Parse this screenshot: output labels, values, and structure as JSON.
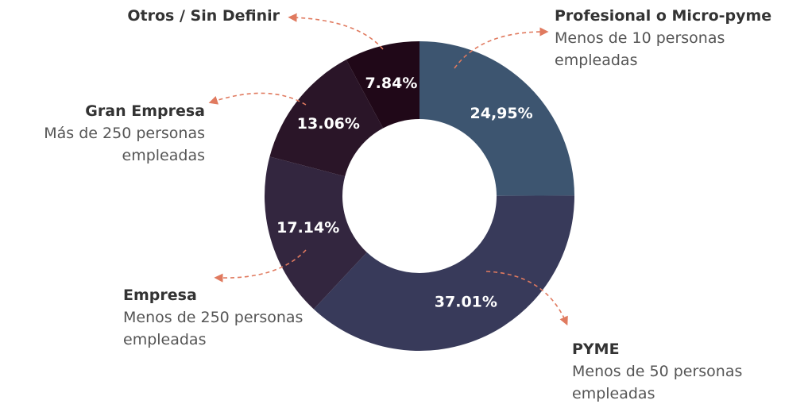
{
  "chart_data": {
    "type": "donut",
    "categories": [
      "Profesional o Micro-pyme",
      "PYME",
      "Empresa",
      "Gran Empresa",
      "Otros / Sin Definir"
    ],
    "descriptions": [
      "Menos de 10 personas empleadas",
      "Menos de 50 personas empleadas",
      "Menos de 250 personas empleadas",
      "Más de 250 personas empleadas",
      null
    ],
    "values": [
      24.95,
      37.01,
      17.14,
      13.06,
      7.84
    ],
    "value_labels": [
      "24,95%",
      "37.01%",
      "17.14%",
      "13.06%",
      "7.84%"
    ],
    "colors": [
      "#3d5570",
      "#383a5a",
      "#33263f",
      "#2a1528",
      "#200818"
    ]
  }
}
